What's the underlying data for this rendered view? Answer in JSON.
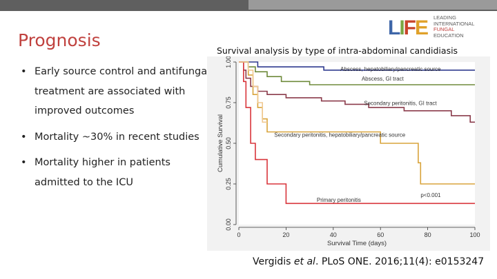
{
  "slide": {
    "title": "Prognosis",
    "bullets": [
      {
        "dot": "•",
        "text": "Early source control and antifungal treatment are associated with improved outcomes"
      },
      {
        "dot": "•",
        "text": "Mortality ~30% in recent studies"
      },
      {
        "dot": "•",
        "text": "Mortality higher in patients admitted to the ICU"
      }
    ],
    "citation": {
      "before": "Vergidis ",
      "italic": "et al",
      "after": ". PLoS ONE. 2016;11(4): e0153247"
    }
  },
  "logo": {
    "mark": [
      "L",
      "I",
      "F",
      "E"
    ],
    "lines": [
      "LEADING",
      "INTERNATIONAL",
      "FUNGAL",
      "EDUCATION"
    ],
    "colors": [
      "#3e66a8",
      "#7aa743",
      "#c8442b",
      "#e0a12a"
    ]
  },
  "chart_data": {
    "type": "line",
    "step": true,
    "title": "Survival analysis by type of intra-abdominal candidiasis",
    "xlabel": "Survival Time (days)",
    "ylabel": "Cumulative Survival",
    "xlim": [
      0,
      100
    ],
    "ylim": [
      0,
      1
    ],
    "xticks": [
      0,
      20,
      40,
      60,
      80,
      100
    ],
    "yticks": [
      "0.00",
      "0.25",
      "0.50",
      "0.75",
      "1.00"
    ],
    "yticks_values": [
      0,
      0.25,
      0.5,
      0.75,
      1.0
    ],
    "annotation": "p<0.001",
    "series": [
      {
        "name": "Abscess, hepatobiliary/pancreatic source",
        "color": "#2f3a8f",
        "points": [
          [
            0,
            1
          ],
          [
            8,
            1
          ],
          [
            8,
            0.97
          ],
          [
            36,
            0.97
          ],
          [
            36,
            0.95
          ],
          [
            100,
            0.95
          ]
        ]
      },
      {
        "name": "Abscess, GI tract",
        "color": "#6e8a3a",
        "points": [
          [
            0,
            1
          ],
          [
            4,
            1
          ],
          [
            4,
            0.97
          ],
          [
            7,
            0.97
          ],
          [
            7,
            0.94
          ],
          [
            12,
            0.94
          ],
          [
            12,
            0.91
          ],
          [
            18,
            0.91
          ],
          [
            18,
            0.88
          ],
          [
            30,
            0.88
          ],
          [
            30,
            0.86
          ],
          [
            100,
            0.86
          ]
        ]
      },
      {
        "name": "Secondary peritonitis, GI tract",
        "color": "#8a3a4a",
        "points": [
          [
            0,
            1
          ],
          [
            2,
            1
          ],
          [
            2,
            0.95
          ],
          [
            3,
            0.95
          ],
          [
            3,
            0.9
          ],
          [
            5,
            0.9
          ],
          [
            5,
            0.85
          ],
          [
            8,
            0.85
          ],
          [
            8,
            0.82
          ],
          [
            12,
            0.82
          ],
          [
            12,
            0.8
          ],
          [
            20,
            0.8
          ],
          [
            20,
            0.78
          ],
          [
            35,
            0.78
          ],
          [
            35,
            0.76
          ],
          [
            45,
            0.76
          ],
          [
            45,
            0.74
          ],
          [
            55,
            0.74
          ],
          [
            55,
            0.72
          ],
          [
            70,
            0.72
          ],
          [
            70,
            0.7
          ],
          [
            90,
            0.7
          ],
          [
            90,
            0.67
          ],
          [
            98,
            0.67
          ],
          [
            98,
            0.63
          ],
          [
            100,
            0.63
          ]
        ]
      },
      {
        "name": "Secondary peritonitis, hepatobiliary/pancreatic source",
        "color": "#d8a33a",
        "points": [
          [
            0,
            1
          ],
          [
            4,
            1
          ],
          [
            4,
            0.92
          ],
          [
            6,
            0.92
          ],
          [
            6,
            0.8
          ],
          [
            8,
            0.8
          ],
          [
            8,
            0.72
          ],
          [
            10,
            0.72
          ],
          [
            10,
            0.65
          ],
          [
            12,
            0.65
          ],
          [
            12,
            0.57
          ],
          [
            60,
            0.57
          ],
          [
            60,
            0.5
          ],
          [
            76,
            0.5
          ],
          [
            76,
            0.38
          ],
          [
            77,
            0.38
          ],
          [
            77,
            0.25
          ],
          [
            100,
            0.25
          ]
        ]
      },
      {
        "name": "Primary peritonitis",
        "color": "#d8343a",
        "points": [
          [
            0,
            1
          ],
          [
            2,
            1
          ],
          [
            2,
            0.88
          ],
          [
            3,
            0.88
          ],
          [
            3,
            0.72
          ],
          [
            5,
            0.72
          ],
          [
            5,
            0.5
          ],
          [
            7,
            0.5
          ],
          [
            7,
            0.4
          ],
          [
            12,
            0.4
          ],
          [
            12,
            0.25
          ],
          [
            20,
            0.25
          ],
          [
            20,
            0.13
          ],
          [
            100,
            0.13
          ]
        ]
      },
      {
        "name": "",
        "color": "#f0c890",
        "points": [
          [
            0,
            1
          ],
          [
            4,
            1
          ],
          [
            4,
            0.95
          ],
          [
            6,
            0.95
          ],
          [
            6,
            0.85
          ],
          [
            8,
            0.85
          ],
          [
            8,
            0.75
          ],
          [
            10,
            0.75
          ],
          [
            10,
            0.63
          ],
          [
            12,
            0.63
          ]
        ]
      }
    ],
    "labels": [
      {
        "text": "Abscess, hepatobiliary/pancreatic source",
        "x": 43,
        "y": 0.945
      },
      {
        "text": "Abscess, GI tract",
        "x": 52,
        "y": 0.885
      },
      {
        "text": "Secondary peritonitis, GI tract",
        "x": 53,
        "y": 0.735
      },
      {
        "text": "Secondary peritonitis, hepatobiliary/pancreatic source",
        "x": 15,
        "y": 0.54
      },
      {
        "text": "Primary peritonitis",
        "x": 33,
        "y": 0.14
      },
      {
        "text": "p<0.001",
        "x": 77,
        "y": 0.17
      }
    ]
  }
}
